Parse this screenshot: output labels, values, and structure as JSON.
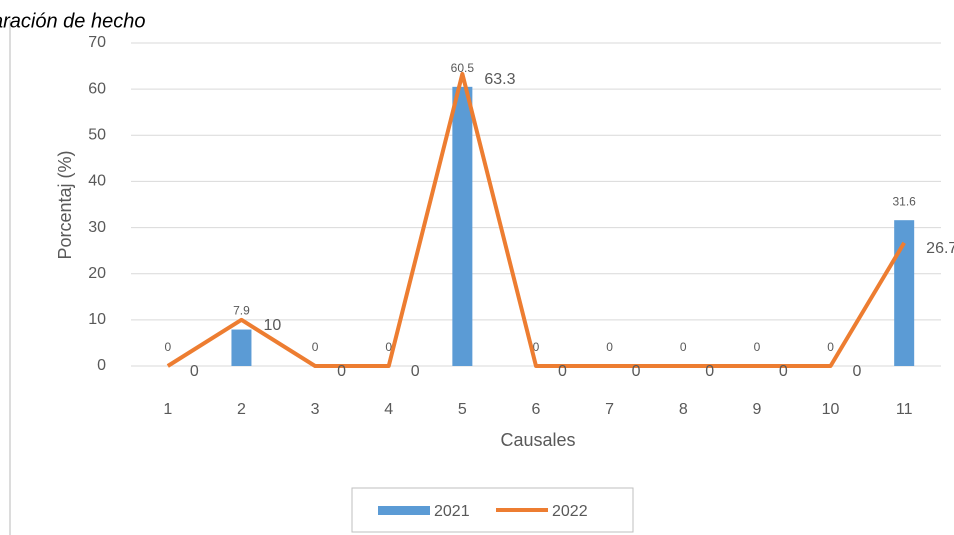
{
  "chart_data": {
    "type": "combo",
    "title": "aración de hecho",
    "x_label": "Causales",
    "y_label": "Porcentaj (%)",
    "categories": [
      1,
      2,
      3,
      4,
      5,
      6,
      7,
      8,
      9,
      10,
      11
    ],
    "series": [
      {
        "name": "2021",
        "type": "bar",
        "color": "#5b9bd5",
        "values": [
          0,
          7.9,
          0,
          0,
          60.5,
          0,
          0,
          0,
          0,
          0,
          31.6
        ]
      },
      {
        "name": "2022",
        "type": "line",
        "color": "#ed7d31",
        "values": [
          0,
          10,
          0,
          0,
          63.3,
          0,
          0,
          0,
          0,
          0,
          26.7
        ]
      }
    ],
    "ylim": [
      0,
      70
    ],
    "yticks": [
      0,
      10,
      20,
      30,
      40,
      50,
      60,
      70
    ],
    "grid": true,
    "legend": "bottom"
  }
}
